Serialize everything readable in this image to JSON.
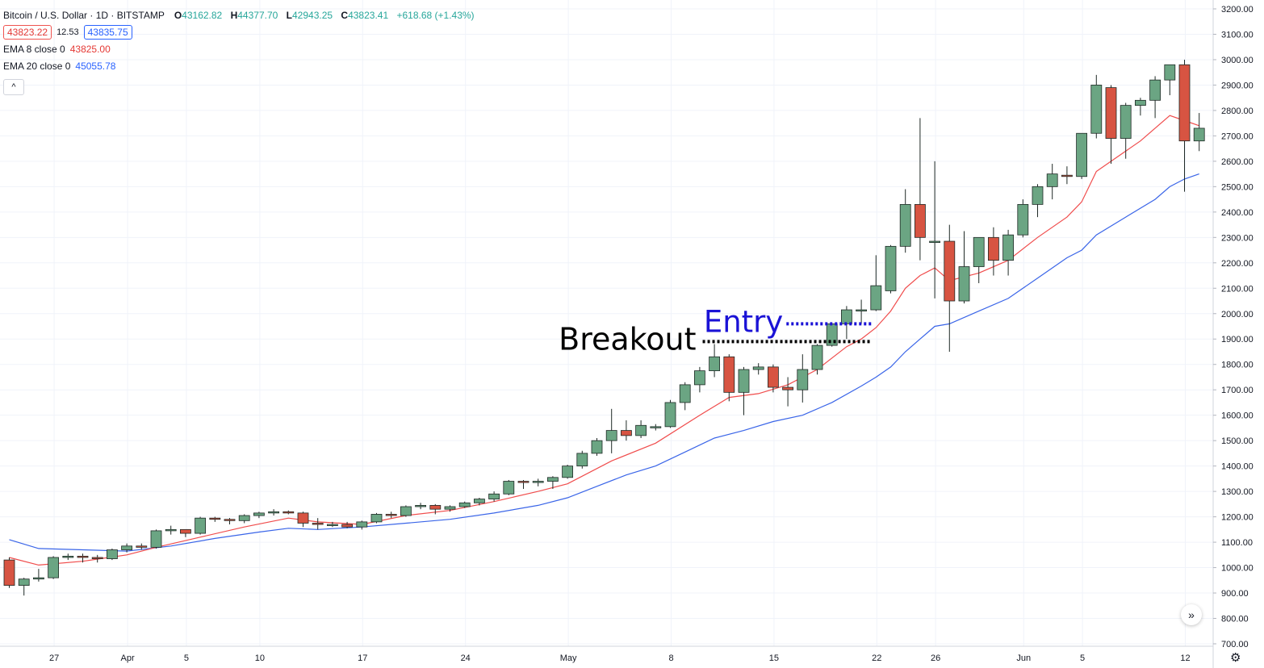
{
  "legend": {
    "symbol": "Bitcoin / U.S. Dollar · 1D · BITSTAMP",
    "open_label": "O",
    "open": "43162.82",
    "high_label": "H",
    "high": "44377.70",
    "low_label": "L",
    "low": "42943.25",
    "close_label": "C",
    "close": "43823.41",
    "change": "+618.68 (+1.43%)",
    "sell_price": "43823.22",
    "spread": "12.53",
    "buy_price": "43835.75",
    "ema8_label": "EMA 8 close 0",
    "ema8_value": "43825.00",
    "ema20_label": "EMA 20 close 0",
    "ema20_value": "45055.78",
    "collapse_icon": "chevron-up-icon"
  },
  "controls": {
    "scroll_icon": "double-chevron-right-icon",
    "settings_icon": "gear-icon"
  },
  "colors": {
    "up": "#6ba583",
    "down": "#d75442",
    "ema8": "#f04c4c",
    "ema20": "#3a65e8",
    "breakout": "#000000",
    "entry": "#1a12d6"
  },
  "chart_data": {
    "type": "candlestick",
    "title": "",
    "ylim": [
      700,
      3200
    ],
    "y_ticks": [
      "700.00",
      "800.00",
      "900.00",
      "1000.00",
      "1100.00",
      "1200.00",
      "1300.00",
      "1400.00",
      "1500.00",
      "1600.00",
      "1700.00",
      "1800.00",
      "1900.00",
      "2000.00",
      "2100.00",
      "2200.00",
      "2300.00",
      "2400.00",
      "2500.00",
      "2600.00",
      "2700.00",
      "2800.00",
      "2900.00",
      "3000.00",
      "3100.00",
      "3200.00"
    ],
    "x_ticks": [
      {
        "label": "27",
        "index": 3
      },
      {
        "label": "Apr",
        "index": 8
      },
      {
        "label": "5",
        "index": 12
      },
      {
        "label": "10",
        "index": 17
      },
      {
        "label": "17",
        "index": 24
      },
      {
        "label": "24",
        "index": 31
      },
      {
        "label": "May",
        "index": 38
      },
      {
        "label": "8",
        "index": 45
      },
      {
        "label": "15",
        "index": 52
      },
      {
        "label": "22",
        "index": 59
      },
      {
        "label": "26",
        "index": 63
      },
      {
        "label": "Jun",
        "index": 69
      },
      {
        "label": "5",
        "index": 73
      },
      {
        "label": "12",
        "index": 80
      }
    ],
    "candles": [
      [
        1030,
        1040,
        920,
        930
      ],
      [
        930,
        960,
        890,
        955
      ],
      [
        955,
        995,
        945,
        960
      ],
      [
        960,
        1045,
        955,
        1040
      ],
      [
        1040,
        1055,
        1030,
        1045
      ],
      [
        1045,
        1055,
        1020,
        1040
      ],
      [
        1040,
        1050,
        1020,
        1035
      ],
      [
        1035,
        1075,
        1030,
        1070
      ],
      [
        1070,
        1095,
        1060,
        1085
      ],
      [
        1085,
        1095,
        1070,
        1080
      ],
      [
        1080,
        1150,
        1075,
        1145
      ],
      [
        1145,
        1165,
        1130,
        1150
      ],
      [
        1150,
        1145,
        1120,
        1135
      ],
      [
        1135,
        1200,
        1130,
        1195
      ],
      [
        1195,
        1200,
        1180,
        1190
      ],
      [
        1190,
        1195,
        1170,
        1185
      ],
      [
        1185,
        1210,
        1175,
        1205
      ],
      [
        1205,
        1220,
        1195,
        1215
      ],
      [
        1215,
        1230,
        1205,
        1220
      ],
      [
        1220,
        1225,
        1210,
        1215
      ],
      [
        1215,
        1220,
        1160,
        1175
      ],
      [
        1175,
        1195,
        1150,
        1170
      ],
      [
        1170,
        1180,
        1160,
        1170
      ],
      [
        1170,
        1180,
        1155,
        1160
      ],
      [
        1160,
        1185,
        1150,
        1180
      ],
      [
        1180,
        1215,
        1175,
        1210
      ],
      [
        1210,
        1220,
        1195,
        1205
      ],
      [
        1205,
        1245,
        1200,
        1240
      ],
      [
        1240,
        1255,
        1230,
        1245
      ],
      [
        1245,
        1250,
        1210,
        1230
      ],
      [
        1230,
        1245,
        1220,
        1240
      ],
      [
        1240,
        1260,
        1235,
        1255
      ],
      [
        1255,
        1275,
        1245,
        1270
      ],
      [
        1270,
        1300,
        1260,
        1290
      ],
      [
        1290,
        1345,
        1285,
        1340
      ],
      [
        1340,
        1345,
        1310,
        1335
      ],
      [
        1335,
        1350,
        1320,
        1340
      ],
      [
        1340,
        1360,
        1310,
        1355
      ],
      [
        1355,
        1405,
        1350,
        1400
      ],
      [
        1400,
        1460,
        1390,
        1450
      ],
      [
        1450,
        1510,
        1440,
        1500
      ],
      [
        1500,
        1625,
        1450,
        1540
      ],
      [
        1540,
        1580,
        1500,
        1520
      ],
      [
        1520,
        1580,
        1510,
        1560
      ],
      [
        1555,
        1565,
        1540,
        1555
      ],
      [
        1555,
        1660,
        1550,
        1650
      ],
      [
        1650,
        1730,
        1620,
        1720
      ],
      [
        1720,
        1790,
        1690,
        1775
      ],
      [
        1775,
        1880,
        1750,
        1830
      ],
      [
        1830,
        1840,
        1655,
        1690
      ],
      [
        1690,
        1790,
        1600,
        1780
      ],
      [
        1780,
        1805,
        1760,
        1790
      ],
      [
        1790,
        1800,
        1690,
        1710
      ],
      [
        1710,
        1750,
        1635,
        1700
      ],
      [
        1700,
        1840,
        1650,
        1780
      ],
      [
        1780,
        1880,
        1760,
        1875
      ],
      [
        1875,
        1960,
        1870,
        1960
      ],
      [
        1960,
        2030,
        1900,
        2015
      ],
      [
        2015,
        2055,
        1960,
        2015
      ],
      [
        2015,
        2230,
        2010,
        2110
      ],
      [
        2090,
        2270,
        2080,
        2265
      ],
      [
        2265,
        2490,
        2240,
        2430
      ],
      [
        2430,
        2770,
        2210,
        2300
      ],
      [
        2280,
        2600,
        2060,
        2285
      ],
      [
        2285,
        2350,
        1850,
        2050
      ],
      [
        2050,
        2325,
        2040,
        2185
      ],
      [
        2185,
        2300,
        2120,
        2300
      ],
      [
        2300,
        2340,
        2150,
        2210
      ],
      [
        2210,
        2330,
        2150,
        2310
      ],
      [
        2310,
        2450,
        2300,
        2430
      ],
      [
        2430,
        2510,
        2380,
        2500
      ],
      [
        2500,
        2590,
        2450,
        2550
      ],
      [
        2545,
        2580,
        2510,
        2540
      ],
      [
        2540,
        2710,
        2530,
        2710
      ],
      [
        2710,
        2940,
        2690,
        2900
      ],
      [
        2890,
        2900,
        2590,
        2690
      ],
      [
        2690,
        2830,
        2610,
        2820
      ],
      [
        2820,
        2850,
        2780,
        2840
      ],
      [
        2840,
        2935,
        2770,
        2920
      ],
      [
        2920,
        2980,
        2860,
        2980
      ],
      [
        2980,
        3000,
        2480,
        2680
      ],
      [
        2680,
        2790,
        2640,
        2730
      ]
    ],
    "ema8": [
      [
        0,
        1040
      ],
      [
        2,
        1010
      ],
      [
        5,
        1025
      ],
      [
        8,
        1050
      ],
      [
        10,
        1080
      ],
      [
        13,
        1120
      ],
      [
        16,
        1160
      ],
      [
        19,
        1195
      ],
      [
        21,
        1180
      ],
      [
        24,
        1170
      ],
      [
        27,
        1205
      ],
      [
        30,
        1225
      ],
      [
        33,
        1260
      ],
      [
        36,
        1300
      ],
      [
        38,
        1330
      ],
      [
        41,
        1420
      ],
      [
        44,
        1490
      ],
      [
        47,
        1600
      ],
      [
        49,
        1670
      ],
      [
        51,
        1685
      ],
      [
        53,
        1720
      ],
      [
        55,
        1780
      ],
      [
        57,
        1870
      ],
      [
        58,
        1900
      ],
      [
        59,
        1945
      ],
      [
        60,
        2010
      ],
      [
        61,
        2100
      ],
      [
        62,
        2150
      ],
      [
        63,
        2180
      ],
      [
        64,
        2130
      ],
      [
        66,
        2160
      ],
      [
        68,
        2210
      ],
      [
        70,
        2300
      ],
      [
        72,
        2380
      ],
      [
        73,
        2440
      ],
      [
        74,
        2560
      ],
      [
        75,
        2600
      ],
      [
        77,
        2680
      ],
      [
        79,
        2780
      ],
      [
        80,
        2760
      ],
      [
        81,
        2740
      ]
    ],
    "ema20": [
      [
        0,
        1110
      ],
      [
        2,
        1075
      ],
      [
        5,
        1070
      ],
      [
        8,
        1065
      ],
      [
        11,
        1085
      ],
      [
        14,
        1115
      ],
      [
        17,
        1140
      ],
      [
        19,
        1155
      ],
      [
        21,
        1150
      ],
      [
        24,
        1160
      ],
      [
        27,
        1175
      ],
      [
        30,
        1190
      ],
      [
        33,
        1215
      ],
      [
        36,
        1245
      ],
      [
        38,
        1275
      ],
      [
        40,
        1320
      ],
      [
        42,
        1365
      ],
      [
        44,
        1400
      ],
      [
        46,
        1455
      ],
      [
        48,
        1510
      ],
      [
        50,
        1540
      ],
      [
        52,
        1575
      ],
      [
        54,
        1600
      ],
      [
        56,
        1650
      ],
      [
        58,
        1715
      ],
      [
        59,
        1750
      ],
      [
        60,
        1790
      ],
      [
        61,
        1850
      ],
      [
        62,
        1900
      ],
      [
        63,
        1950
      ],
      [
        64,
        1960
      ],
      [
        66,
        2010
      ],
      [
        68,
        2060
      ],
      [
        70,
        2140
      ],
      [
        72,
        2220
      ],
      [
        73,
        2250
      ],
      [
        74,
        2310
      ],
      [
        76,
        2380
      ],
      [
        78,
        2450
      ],
      [
        79,
        2500
      ],
      [
        80,
        2530
      ],
      [
        81,
        2550
      ]
    ],
    "annotations": [
      {
        "label": "Breakout",
        "line_from_index": 47.2,
        "line_to_index": 58.6,
        "level": 1890
      },
      {
        "label": "Entry",
        "line_from_index": 52.9,
        "line_to_index": 58.8,
        "level": 1960
      }
    ]
  }
}
